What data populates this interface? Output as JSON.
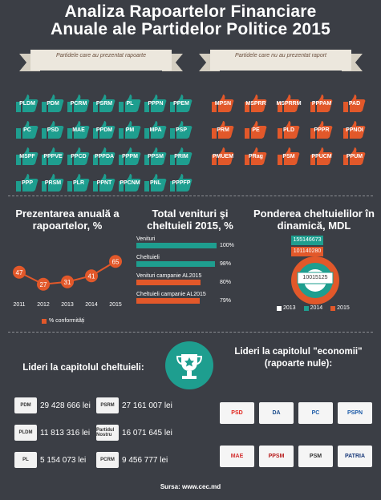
{
  "title": {
    "line1": "Analiza Rapoartelor Financiare",
    "line2": "Anuale ale Partidelor Politice 2015"
  },
  "ribbons": {
    "left": "Partidele care au prezentat rapoarte",
    "right": "Partidele care nu au prezentat raport"
  },
  "teal_parties": [
    "PLDM",
    "PDM",
    "PCRM",
    "PSRM",
    "PL",
    "PPPN",
    "PPEM",
    "PC",
    "PSD",
    "MAE",
    "PPDM",
    "PM",
    "MPA",
    "PSP",
    "MSPF",
    "PPPVE",
    "PPCD",
    "PPPDA",
    "PPPM",
    "PPSM",
    "PRIM",
    "PPP",
    "PRSM",
    "PLR",
    "PPNT",
    "PPCNM",
    "PNL",
    "PPPFP"
  ],
  "orange_parties": [
    "MPSN",
    "MSPRR",
    "MSPRRM",
    "PPPAM",
    "PAD",
    "PRM",
    "PE",
    "PLD",
    "PPPR",
    "PPNOI",
    "PMUEM",
    "PRag",
    "PSM",
    "PPUCM",
    "PPUM"
  ],
  "section1": {
    "title": "Prezentarea anuală a rapoartelor, %",
    "legend": "% conformități",
    "chart_data": {
      "type": "line",
      "x": [
        "2011",
        "2012",
        "2013",
        "2014",
        "2015"
      ],
      "values": [
        47,
        27,
        31,
        41,
        65
      ],
      "color": "#e2582a"
    }
  },
  "section2": {
    "title": "Total venituri şi cheltuieli 2015, %",
    "chart_data": {
      "type": "bar",
      "categories": [
        "Venituri",
        "Cheltuieli",
        "Venituri campanie AL2015",
        "Cheltuieli campanie AL2015"
      ],
      "values": [
        100,
        98,
        80,
        79
      ],
      "labels": [
        "100%",
        "98%",
        "80%",
        "79%"
      ],
      "colors": [
        "#1e9e8f",
        "#1e9e8f",
        "#e2582a",
        "#e2582a"
      ]
    }
  },
  "section3": {
    "title": "Ponderea cheltuielilor în dinamică, MDL",
    "chart_data": {
      "type": "bar",
      "series": [
        {
          "name": "2013",
          "value": 10015125,
          "label": "10015125",
          "color": "#ffffff"
        },
        {
          "name": "2014",
          "value": 155146673,
          "label": "155146673",
          "color": "#1e9e8f"
        },
        {
          "name": "2015",
          "value": 101140280,
          "label": "101140280",
          "color": "#e2582a"
        }
      ]
    },
    "legend": [
      "2013",
      "2014",
      "2015"
    ]
  },
  "leaders_expenses": {
    "title": "Lideri la capitolul cheltuieli:",
    "items": [
      {
        "logo": "PDM",
        "value": "29 428 666 lei"
      },
      {
        "logo": "PSRM",
        "value": "27 161 007 lei"
      },
      {
        "logo": "PLDM",
        "value": "11 813 316 lei"
      },
      {
        "logo": "Partidul Nostru",
        "value": "16 071 645 lei"
      },
      {
        "logo": "PL",
        "value": "5 154 073 lei"
      },
      {
        "logo": "PCRM",
        "value": "9 456 777 lei"
      }
    ]
  },
  "leaders_economy": {
    "title": "Lideri la capitolul \"economii\" (rapoarte nule):",
    "logos": [
      "PSD",
      "DA",
      "PC",
      "PSPN",
      "MAE",
      "PPSM",
      "PSM",
      "PATRIA"
    ]
  },
  "source": "Sursa: www.cec.md",
  "colors": {
    "teal": "#1e9e8f",
    "orange": "#e2582a",
    "background": "#3b3e45"
  }
}
